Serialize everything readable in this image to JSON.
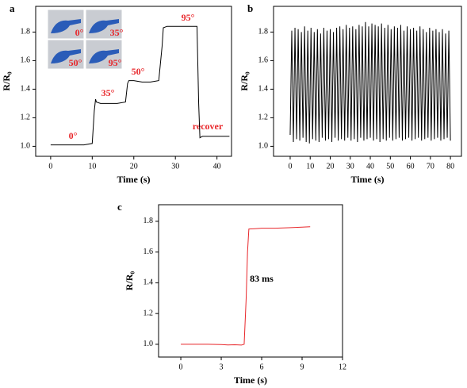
{
  "chart_data": [
    {
      "type": "line",
      "panel_label": "a",
      "x_label": "Time (s)",
      "y_label": "R/R₀",
      "color": "#000000",
      "annotation_color": "#e8262a",
      "annotations": [
        "0°",
        "35°",
        "50°",
        "95°",
        "recover"
      ],
      "inset_labels": [
        "0°",
        "35°",
        "50°",
        "95°"
      ],
      "x": [
        0,
        2,
        4,
        6,
        8,
        10,
        10.5,
        10.8,
        11,
        12,
        14,
        16,
        18,
        18.5,
        18.8,
        20,
        22,
        24,
        26,
        26.8,
        27.1,
        28,
        30,
        32,
        34,
        35.2,
        35.6,
        35.9,
        36.5,
        38,
        40,
        42,
        43
      ],
      "values": [
        1.01,
        1.01,
        1.01,
        1.01,
        1.01,
        1.02,
        1.25,
        1.33,
        1.31,
        1.3,
        1.3,
        1.3,
        1.31,
        1.44,
        1.46,
        1.46,
        1.45,
        1.45,
        1.46,
        1.7,
        1.83,
        1.84,
        1.84,
        1.84,
        1.84,
        1.84,
        1.3,
        1.06,
        1.07,
        1.07,
        1.07,
        1.07,
        1.07
      ],
      "xlim": [
        -3.6,
        43.5
      ],
      "ylim": [
        0.93,
        1.98
      ],
      "xticks": [
        0,
        10,
        20,
        30,
        40
      ],
      "yticks": [
        {
          "value": 1,
          "label": "1.0"
        },
        1.2,
        1.4,
        1.6,
        1.8
      ]
    },
    {
      "type": "line",
      "panel_label": "b",
      "x_label": "Time (s)",
      "y_label": "R/R₀",
      "color": "#000000",
      "x": [
        0,
        0.8,
        1.6,
        2.4,
        3.2,
        4,
        4.8,
        5.6,
        6.4,
        7.2,
        8,
        8.8,
        9.6,
        10.4,
        11.2,
        12,
        12.8,
        13.6,
        14.4,
        15.2,
        16,
        16.8,
        17.6,
        18.4,
        19.2,
        20,
        20.8,
        21.6,
        22.4,
        23.2,
        24,
        24.8,
        25.6,
        26.4,
        27.2,
        28,
        28.8,
        29.6,
        30.4,
        31.2,
        32,
        32.8,
        33.6,
        34.4,
        35.2,
        36,
        36.8,
        37.6,
        38.4,
        39.2,
        40,
        40.8,
        41.6,
        42.4,
        43.2,
        44,
        44.8,
        45.6,
        46.4,
        47.2,
        48,
        48.8,
        49.6,
        50.4,
        51.2,
        52,
        52.8,
        53.6,
        54.4,
        55.2,
        56,
        56.8,
        57.6,
        58.4,
        59.2,
        60,
        60.8,
        61.6,
        62.4,
        63.2,
        64,
        64.8,
        65.6,
        66.4,
        67.2,
        68,
        68.8,
        69.6,
        70.4,
        71.2,
        72,
        72.8,
        73.6,
        74.4,
        75.2,
        76,
        76.8,
        77.6,
        78.4,
        79.2,
        80
      ],
      "values": [
        1.08,
        1.81,
        1.03,
        1.83,
        1.05,
        1.82,
        1.04,
        1.8,
        1.06,
        1.84,
        1.03,
        1.81,
        1.02,
        1.83,
        1.05,
        1.8,
        1.04,
        1.82,
        1.03,
        1.79,
        1.06,
        1.83,
        1.04,
        1.81,
        1.05,
        1.82,
        1.03,
        1.8,
        1.06,
        1.83,
        1.04,
        1.84,
        1.05,
        1.82,
        1.04,
        1.85,
        1.06,
        1.83,
        1.04,
        1.84,
        1.05,
        1.82,
        1.03,
        1.85,
        1.06,
        1.84,
        1.04,
        1.87,
        1.05,
        1.84,
        1.06,
        1.86,
        1.04,
        1.85,
        1.05,
        1.84,
        1.03,
        1.86,
        1.05,
        1.83,
        1.04,
        1.85,
        1.06,
        1.82,
        1.04,
        1.84,
        1.05,
        1.83,
        1.06,
        1.85,
        1.04,
        1.81,
        1.05,
        1.84,
        1.06,
        1.82,
        1.04,
        1.83,
        1.05,
        1.81,
        1.06,
        1.84,
        1.04,
        1.82,
        1.05,
        1.8,
        1.06,
        1.83,
        1.04,
        1.81,
        1.05,
        1.82,
        1.06,
        1.8,
        1.04,
        1.82,
        1.05,
        1.79,
        1.06,
        1.81,
        1.04
      ],
      "xlim": [
        -8.3,
        85.5
      ],
      "ylim": [
        0.93,
        1.98
      ],
      "xticks": [
        0,
        10,
        20,
        30,
        40,
        50,
        60,
        70,
        80
      ],
      "yticks": [
        {
          "value": 1,
          "label": "1.0"
        },
        1.2,
        1.4,
        1.6,
        1.8
      ]
    },
    {
      "type": "line",
      "panel_label": "c",
      "x_label": "Time (s)",
      "y_label": "R/R₀",
      "color": "#e8262a",
      "annotations": [
        "83 ms"
      ],
      "x": [
        0,
        1,
        2,
        3,
        3.5,
        4,
        4.5,
        4.7,
        4.85,
        4.95,
        5.05,
        5.5,
        6,
        7,
        8,
        9,
        9.6
      ],
      "values": [
        1.0,
        1.0,
        1.0,
        0.998,
        0.996,
        0.997,
        0.995,
        1.0,
        1.3,
        1.6,
        1.75,
        1.752,
        1.755,
        1.755,
        1.758,
        1.762,
        1.765
      ],
      "xlim": [
        -1.65,
        12
      ],
      "ylim": [
        0.917,
        1.908
      ],
      "xticks": [
        0,
        3,
        6,
        9,
        12
      ],
      "yticks": [
        {
          "value": 1,
          "label": "1.0"
        },
        1.2,
        1.4,
        1.6,
        1.8
      ]
    }
  ]
}
